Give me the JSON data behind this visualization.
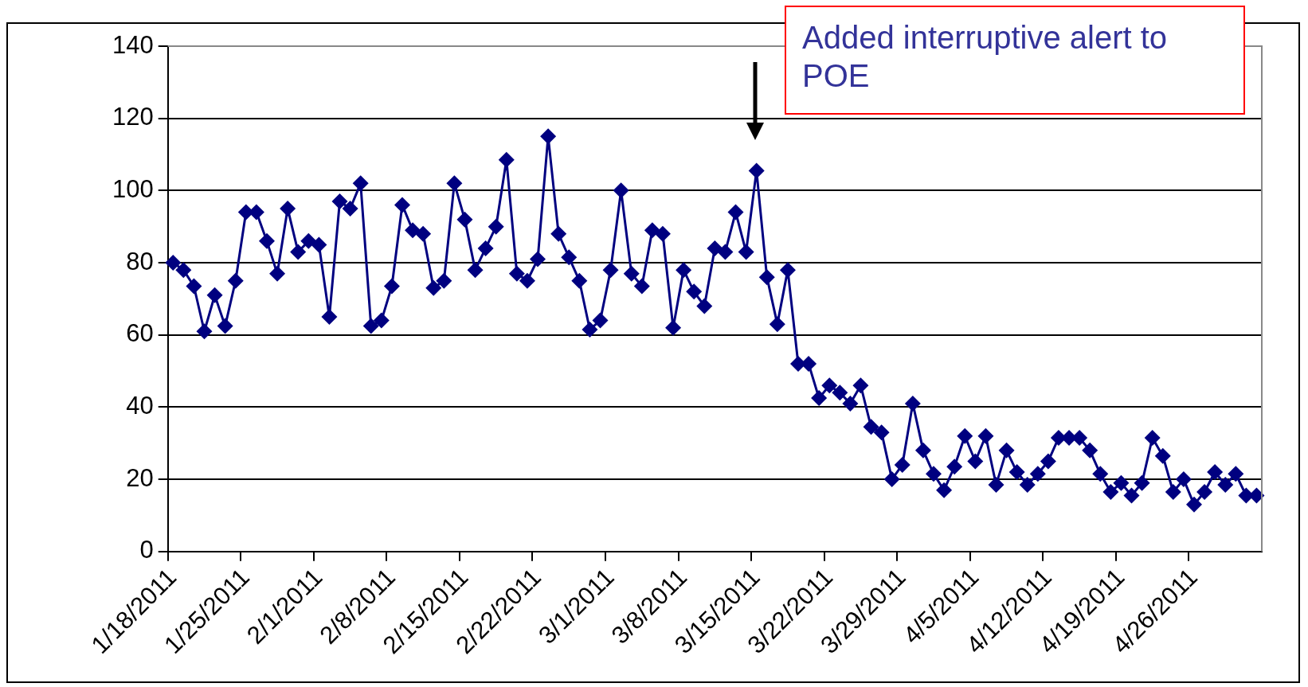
{
  "chart_data": {
    "type": "line",
    "categories": [
      "1/18/2011",
      null,
      null,
      null,
      null,
      null,
      null,
      "1/25/2011",
      null,
      null,
      null,
      null,
      null,
      null,
      "2/1/2011",
      null,
      null,
      null,
      null,
      null,
      null,
      "2/8/2011",
      null,
      null,
      null,
      null,
      null,
      null,
      "2/15/2011",
      null,
      null,
      null,
      null,
      null,
      null,
      "2/22/2011",
      null,
      null,
      null,
      null,
      null,
      null,
      "3/1/2011",
      null,
      null,
      null,
      null,
      null,
      null,
      "3/8/2011",
      null,
      null,
      null,
      null,
      null,
      null,
      "3/15/2011",
      null,
      null,
      null,
      null,
      null,
      null,
      "3/22/2011",
      null,
      null,
      null,
      null,
      null,
      null,
      "3/29/2011",
      null,
      null,
      null,
      null,
      null,
      null,
      "4/5/2011",
      null,
      null,
      null,
      null,
      null,
      null,
      "4/12/2011",
      null,
      null,
      null,
      null,
      null,
      null,
      "4/19/2011",
      null,
      null,
      null,
      null,
      null,
      null,
      "4/26/2011",
      null,
      null,
      null,
      null,
      null,
      null
    ],
    "series": [
      {
        "color": "#000080",
        "values": [
          80,
          78,
          73.5,
          61,
          71,
          62.5,
          75,
          94,
          94,
          86,
          77,
          95,
          83,
          86,
          85,
          65,
          97,
          95,
          102,
          62.5,
          64,
          73.5,
          96,
          89,
          88,
          73,
          75,
          102,
          92,
          78,
          84,
          90,
          108.5,
          77,
          75,
          81,
          115,
          88,
          81.5,
          75,
          61.5,
          64,
          78,
          100,
          77,
          73.5,
          89,
          88,
          62,
          78,
          72,
          68,
          84,
          83,
          94,
          83,
          105.5,
          76,
          63,
          78,
          52,
          52,
          42.5,
          46,
          44,
          41,
          46,
          34.5,
          33,
          20,
          24,
          41,
          28,
          21.5,
          17,
          23.5,
          32,
          25,
          32,
          18.5,
          28,
          22,
          18.5,
          21.5,
          25,
          31.5,
          31.5,
          31.5,
          28,
          21.5,
          16.5,
          19,
          15.5,
          19,
          31.5,
          26.5,
          16.5,
          20,
          13,
          16.5,
          22,
          18.5,
          21.5,
          15.5,
          15.5
        ]
      }
    ],
    "ylim": [
      0,
      140
    ],
    "yticks": [
      0,
      20,
      40,
      60,
      80,
      100,
      120,
      140
    ],
    "grid": "y",
    "legend": false,
    "marker": "diamond",
    "line_style": "solid",
    "annotations": [
      "Added interruptive alert to POE"
    ]
  }
}
